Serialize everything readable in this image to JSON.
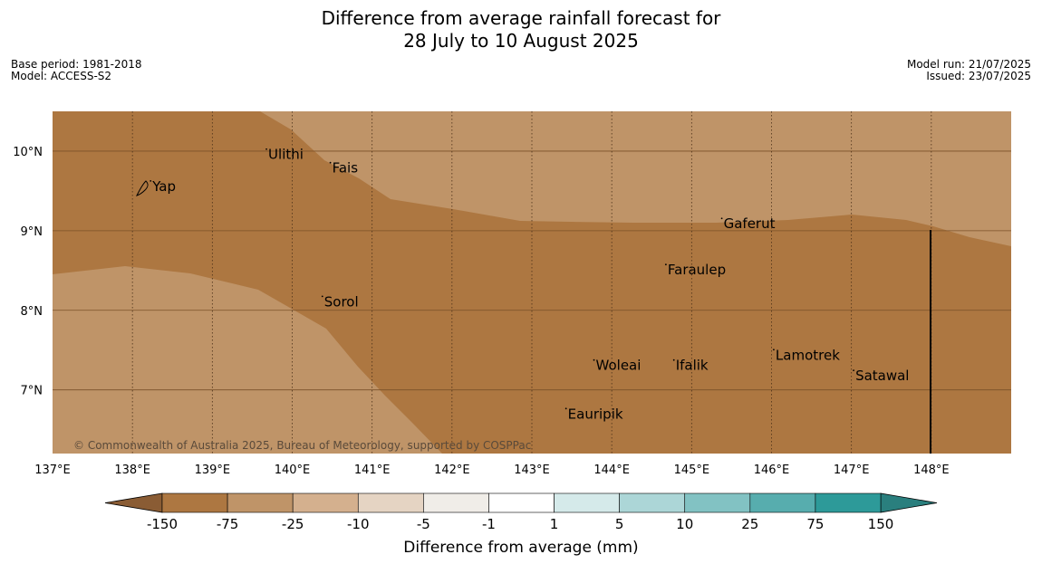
{
  "title": {
    "line1": "Difference from average rainfall forecast for",
    "line2": "28 July to 10 August 2025"
  },
  "meta_left": {
    "base_period": "Base period: 1981-2018",
    "model": "Model: ACCESS-S2"
  },
  "meta_right": {
    "model_run": "Model run: 21/07/2025",
    "issued": "Issued: 23/07/2025"
  },
  "map": {
    "extent": {
      "lon": [
        137,
        149
      ],
      "lat": [
        6.2,
        10.5
      ]
    },
    "lon_ticks": [
      137,
      138,
      139,
      140,
      141,
      142,
      143,
      144,
      145,
      146,
      147,
      148
    ],
    "lon_labels": [
      "137°E",
      "138°E",
      "139°E",
      "140°E",
      "141°E",
      "142°E",
      "143°E",
      "144°E",
      "145°E",
      "146°E",
      "147°E",
      "148°E"
    ],
    "lat_ticks": [
      7,
      8,
      9,
      10
    ],
    "lat_labels": [
      "7°N",
      "8°N",
      "9°N",
      "10°N"
    ],
    "copyright": "© Commonwealth of Australia 2025, Bureau of Meteorology, supported by COSPPac",
    "colors": {
      "dark_brown": "#ad7741",
      "light_brown": "#bf9468",
      "boundary": "#000000"
    },
    "background_category": "-150 to -75",
    "light_region_category": "-75 to -25",
    "places": [
      {
        "name": "Yap",
        "lon": 138.25,
        "lat": 9.5
      },
      {
        "name": "Ulithi",
        "lon": 139.7,
        "lat": 9.9
      },
      {
        "name": "Fais",
        "lon": 140.5,
        "lat": 9.73
      },
      {
        "name": "Gaferut",
        "lon": 145.4,
        "lat": 9.03
      },
      {
        "name": "Faraulep",
        "lon": 144.7,
        "lat": 8.45
      },
      {
        "name": "Sorol",
        "lon": 140.4,
        "lat": 8.05
      },
      {
        "name": "Lamotrek",
        "lon": 146.05,
        "lat": 7.38
      },
      {
        "name": "Woleai",
        "lon": 143.8,
        "lat": 7.25
      },
      {
        "name": "Ifalik",
        "lon": 144.8,
        "lat": 7.25
      },
      {
        "name": "Satawal",
        "lon": 147.05,
        "lat": 7.12
      },
      {
        "name": "Eauripik",
        "lon": 143.45,
        "lat": 6.64
      }
    ]
  },
  "legend": {
    "label": "Difference from average (mm)",
    "ticks": [
      "-150",
      "-75",
      "-25",
      "-10",
      "-5",
      "-1",
      "1",
      "5",
      "10",
      "25",
      "75",
      "150"
    ],
    "colors": [
      "#ad7741",
      "#bf9468",
      "#d4b08e",
      "#e5d4c3",
      "#f0ede8",
      "#ffffff",
      "#d5eaea",
      "#acd6d7",
      "#82c2c3",
      "#57adae",
      "#2d9a99"
    ],
    "under_color": "#8a5c34",
    "over_color": "#2a7f7e"
  }
}
